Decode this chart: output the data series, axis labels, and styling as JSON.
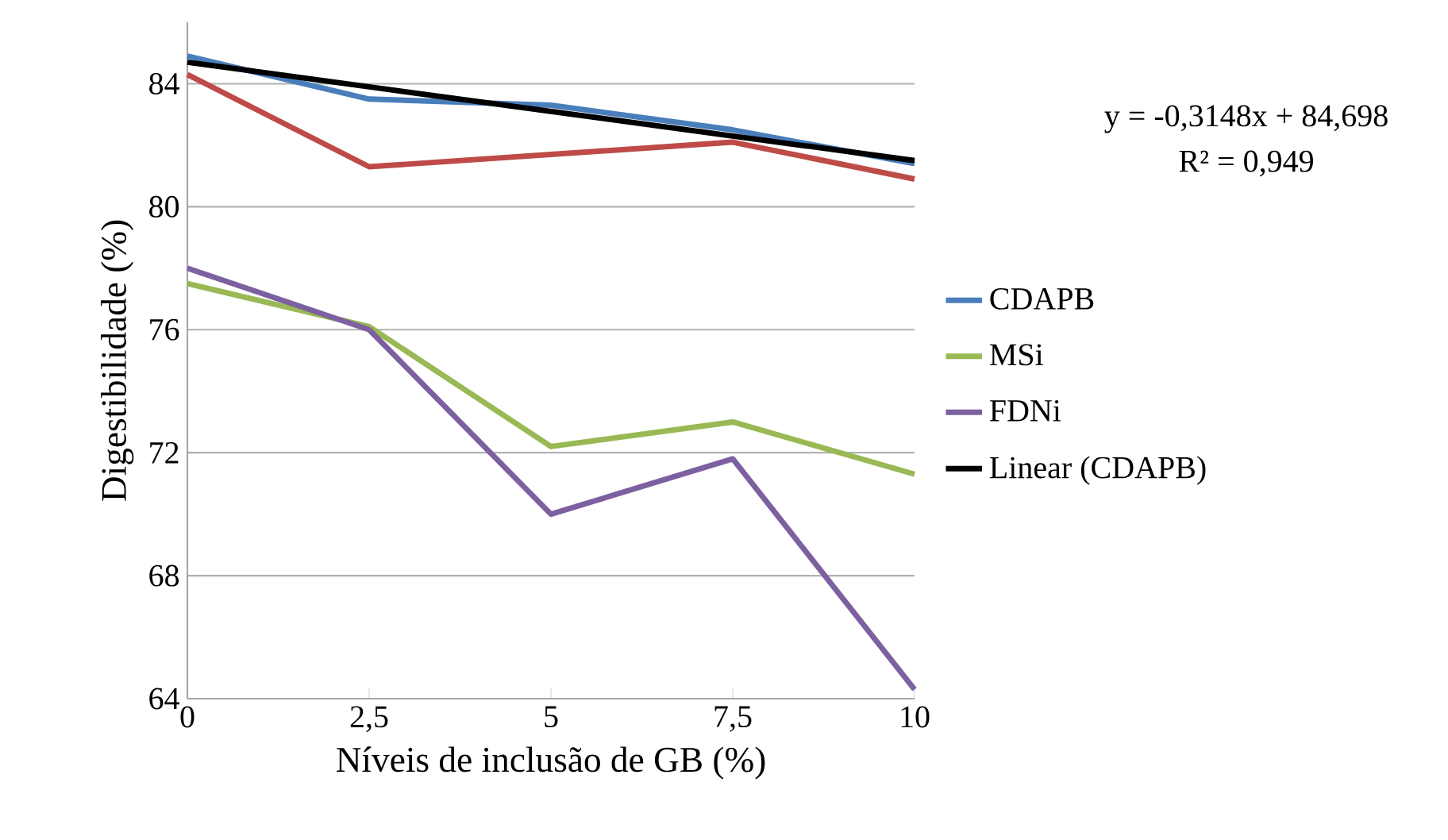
{
  "chart_data": {
    "type": "line",
    "xlabel": "Níveis de inclusão de GB (%)",
    "ylabel": "Digestibilidade (%)",
    "categories": [
      "0",
      "2,5",
      "5",
      "7,5",
      "10"
    ],
    "series": [
      {
        "name": "CDAPB",
        "color": "#4a7ebb",
        "values": [
          84.9,
          83.5,
          83.3,
          82.5,
          81.4
        ]
      },
      {
        "color": "#be4b48",
        "values": [
          84.3,
          81.3,
          81.7,
          82.1,
          80.9
        ]
      },
      {
        "name": "MSi",
        "color": "#98b954",
        "values": [
          77.5,
          76.1,
          72.2,
          73.0,
          71.3
        ]
      },
      {
        "name": "FDNi",
        "color": "#7d60a0",
        "values": [
          78.0,
          76.0,
          70.0,
          71.8,
          64.3
        ]
      },
      {
        "name": "Linear (CDAPB)",
        "color": "#000000",
        "values": [
          84.7,
          83.9,
          83.1,
          82.3,
          81.5
        ]
      }
    ],
    "ylim": [
      64,
      86
    ],
    "yticks": [
      64,
      68,
      72,
      76,
      80,
      84
    ],
    "grid": "y",
    "legend": "right",
    "annotations": [
      "y = -0,3148x + 84,698",
      "R² = 0,949"
    ]
  }
}
